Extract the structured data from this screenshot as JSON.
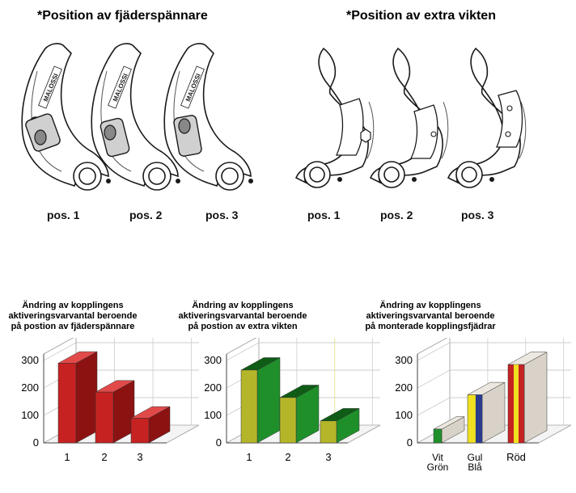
{
  "headings": {
    "left": "*Position av fjäderspännare",
    "right": "*Position av extra vikten"
  },
  "brand_logo": "MALOSSI",
  "left_positions": [
    "pos. 1",
    "pos. 2",
    "pos. 3"
  ],
  "right_positions": [
    "pos. 1",
    "pos. 2",
    "pos. 3"
  ],
  "colors": {
    "red": "#c62222",
    "red_dark": "#8c1212",
    "olive": "#b5b52a",
    "green": "#1f8f2a",
    "green_dark": "#0f5c16",
    "yellow": "#f0e020",
    "blue": "#2a3a8c",
    "silver": "#d8d2c8"
  },
  "chart_data": [
    {
      "type": "bar",
      "title": "Ändring av kopplingens\naktiveringsvarvantal beroende\npå postion av fjäderspännare",
      "categories": [
        "1",
        "2",
        "3"
      ],
      "values": [
        290,
        185,
        90
      ],
      "ylim": [
        0,
        300
      ],
      "yticks": [
        "0",
        "100",
        "200",
        "300"
      ],
      "grid": true
    },
    {
      "type": "bar",
      "title": "Ändring av kopplingens\naktiveringsvarvantal beroende\npå postion av extra vikten",
      "categories": [
        "1",
        "2",
        "3"
      ],
      "values": [
        265,
        165,
        80
      ],
      "ylim": [
        0,
        300
      ],
      "yticks": [
        "0",
        "100",
        "200",
        "300"
      ],
      "grid": true
    },
    {
      "type": "bar",
      "title": "Ändring av kopplingens\naktiveringsvarvantal beroende\npå monterade kopplingsfjädrar",
      "categories": [
        "Vit\nGrön",
        "Gul\nBlå",
        "Röd"
      ],
      "values": [
        50,
        175,
        285
      ],
      "ylim": [
        0,
        300
      ],
      "yticks": [
        "0",
        "100",
        "200",
        "300"
      ],
      "grid": true
    }
  ]
}
